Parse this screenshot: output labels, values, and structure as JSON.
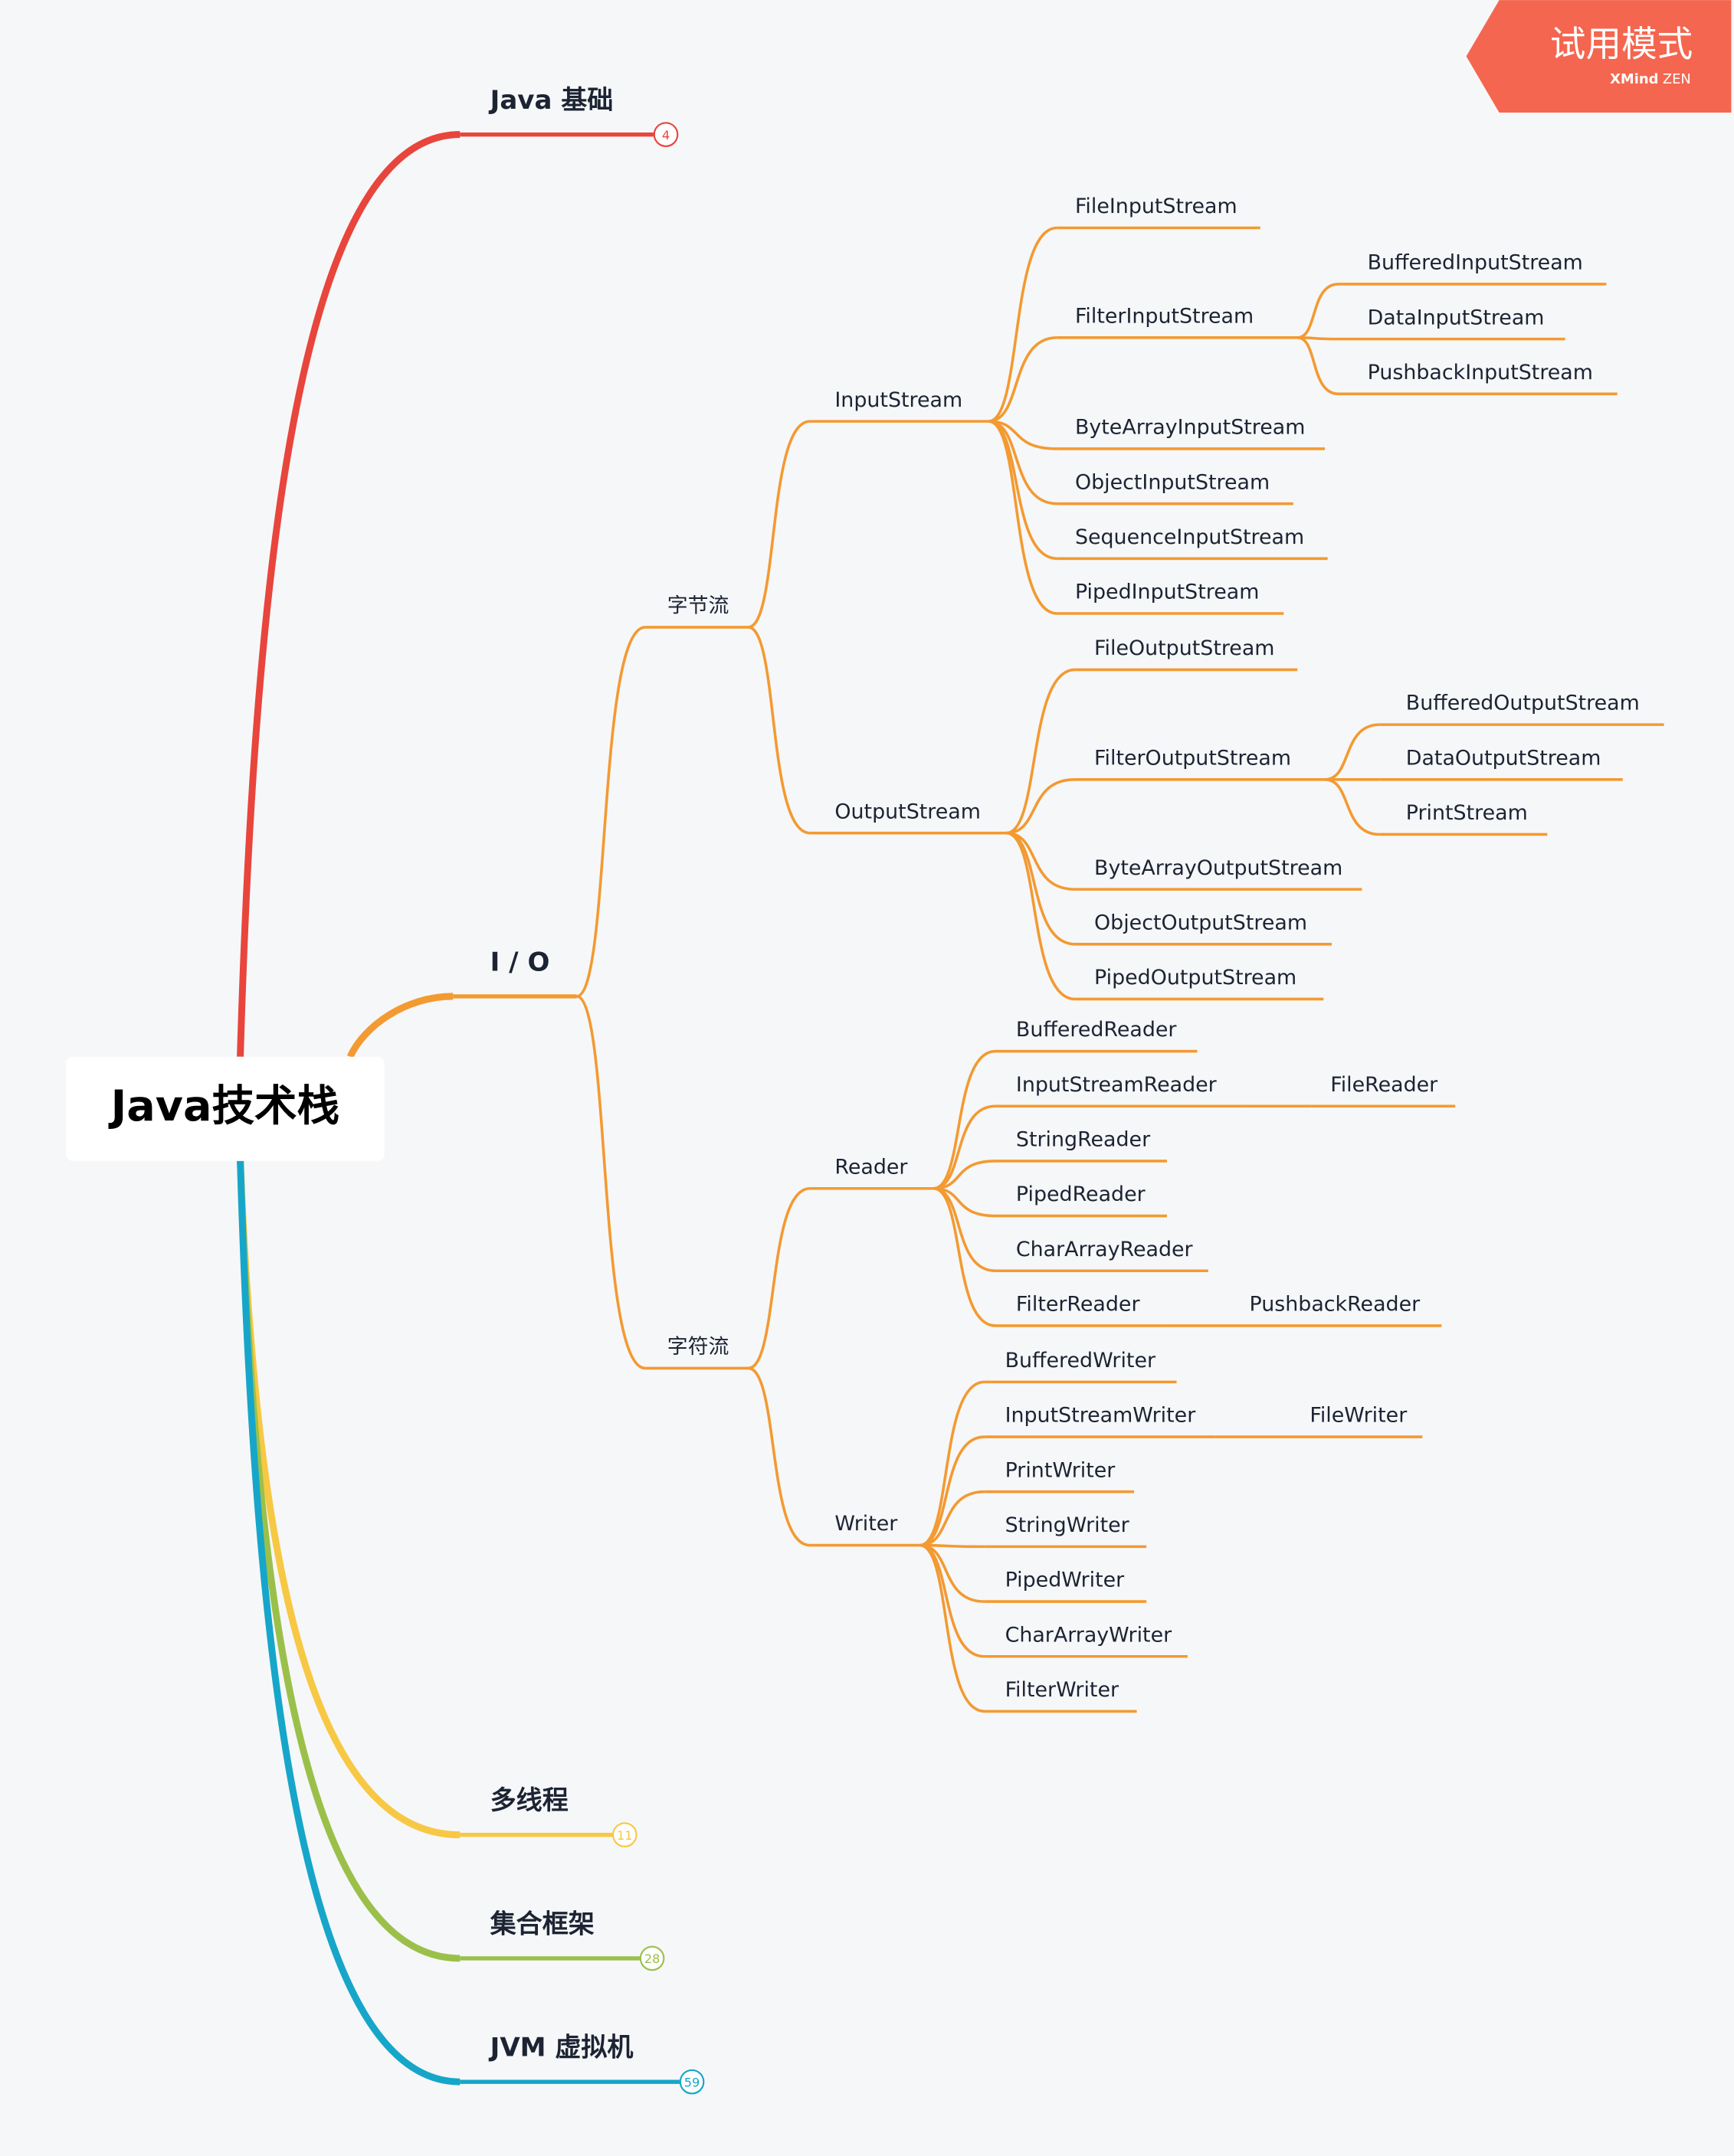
{
  "watermark": {
    "title": "试用模式",
    "brand": "XMind",
    "edition": "ZEN"
  },
  "root": {
    "label": "Java技术栈",
    "children": [
      {
        "label": "Java 基础",
        "count": 4,
        "color": "#e8453c"
      },
      {
        "label": "I / O",
        "color": "#f39a31",
        "children": [
          {
            "label": "字节流",
            "children": [
              {
                "label": "InputStream",
                "children": [
                  {
                    "label": "FileInputStream"
                  },
                  {
                    "label": "FilterInputStream",
                    "children": [
                      {
                        "label": "BufferedInputStream"
                      },
                      {
                        "label": "DataInputStream"
                      },
                      {
                        "label": "PushbackInputStream"
                      }
                    ]
                  },
                  {
                    "label": "ByteArrayInputStream"
                  },
                  {
                    "label": "ObjectInputStream"
                  },
                  {
                    "label": "SequenceInputStream"
                  },
                  {
                    "label": "PipedInputStream"
                  }
                ]
              },
              {
                "label": "OutputStream",
                "children": [
                  {
                    "label": "FileOutputStream"
                  },
                  {
                    "label": "FilterOutputStream",
                    "children": [
                      {
                        "label": "BufferedOutputStream"
                      },
                      {
                        "label": "DataOutputStream"
                      },
                      {
                        "label": "PrintStream"
                      }
                    ]
                  },
                  {
                    "label": "ByteArrayOutputStream"
                  },
                  {
                    "label": "ObjectOutputStream"
                  },
                  {
                    "label": "PipedOutputStream"
                  }
                ]
              }
            ]
          },
          {
            "label": "字符流",
            "children": [
              {
                "label": "Reader",
                "children": [
                  {
                    "label": "BufferedReader"
                  },
                  {
                    "label": "InputStreamReader",
                    "children": [
                      {
                        "label": "FileReader"
                      }
                    ]
                  },
                  {
                    "label": "StringReader"
                  },
                  {
                    "label": "PipedReader"
                  },
                  {
                    "label": "CharArrayReader"
                  },
                  {
                    "label": "FilterReader",
                    "children": [
                      {
                        "label": "PushbackReader"
                      }
                    ]
                  }
                ]
              },
              {
                "label": "Writer",
                "children": [
                  {
                    "label": "BufferedWriter"
                  },
                  {
                    "label": "InputStreamWriter",
                    "children": [
                      {
                        "label": "FileWriter"
                      }
                    ]
                  },
                  {
                    "label": "PrintWriter"
                  },
                  {
                    "label": "StringWriter"
                  },
                  {
                    "label": "PipedWriter"
                  },
                  {
                    "label": "CharArrayWriter"
                  },
                  {
                    "label": "FilterWriter"
                  }
                ]
              }
            ]
          }
        ]
      },
      {
        "label": "多线程",
        "count": 11,
        "color": "#f7c843"
      },
      {
        "label": "集合框架",
        "count": 28,
        "color": "#9bc04a"
      },
      {
        "label": "JVM 虚拟机",
        "count": 59,
        "color": "#16a6c9"
      }
    ]
  }
}
